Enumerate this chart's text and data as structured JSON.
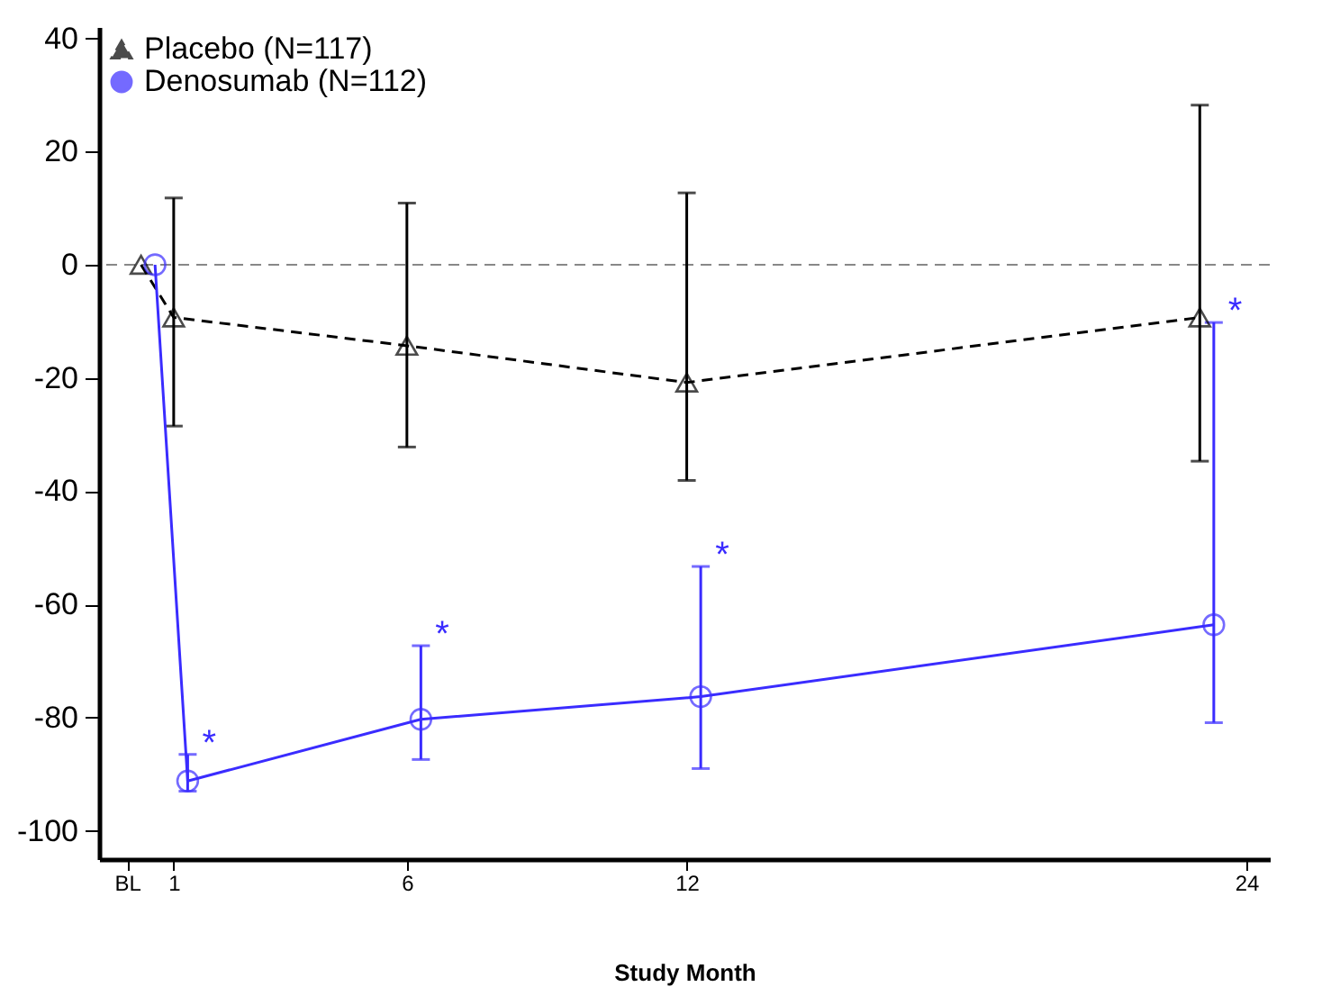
{
  "chart_data": {
    "type": "line",
    "xlabel": "Study Month",
    "xlim": [
      -0.6,
      24.5
    ],
    "xticks": [
      {
        "value": 0,
        "label": "BL"
      },
      1,
      6,
      12,
      24
    ],
    "ylim": [
      -105,
      42
    ],
    "yticks": [
      -100,
      -80,
      -60,
      -40,
      -20,
      0,
      20,
      40
    ],
    "legend": "top left",
    "grid": false,
    "ref_lines": [
      {
        "axis": "y",
        "value": 0,
        "color": "#888888",
        "line_style": "dashed"
      }
    ],
    "series": [
      {
        "name": "Placebo (N=117)",
        "color": "#000000",
        "marker": "triangle",
        "line_style": "dashed",
        "x": [
          0.3,
          1,
          6,
          12,
          23
        ],
        "values": [
          0,
          -9.3,
          -14.3,
          -20.8,
          -9.3
        ],
        "errors": [
          null,
          [
            -28.5,
            11.8
          ],
          [
            -32.2,
            10.9
          ],
          [
            -38.1,
            12.7
          ],
          [
            -34.7,
            28.2
          ]
        ]
      },
      {
        "name": "Denosumab (N=112)",
        "color": "#3a2cff",
        "marker": "circle",
        "line_style": "solid",
        "x": [
          0.6,
          1.3,
          6.3,
          12.3,
          23.3
        ],
        "values": [
          0,
          -91.2,
          -80.3,
          -76.3,
          -63.6
        ],
        "errors": [
          null,
          [
            -93,
            -86.5
          ],
          [
            -87.4,
            -67.3
          ],
          [
            -89,
            -53.3
          ],
          [
            -80.9,
            -10.2
          ]
        ]
      }
    ],
    "annotations": [
      {
        "text": "*",
        "x": 1.3,
        "y": -86.5
      },
      {
        "text": "*",
        "x": 6.3,
        "y": -67.3
      },
      {
        "text": "*",
        "x": 12.3,
        "y": -53.3
      },
      {
        "text": "*",
        "x": 23.3,
        "y": -10.2
      }
    ]
  }
}
